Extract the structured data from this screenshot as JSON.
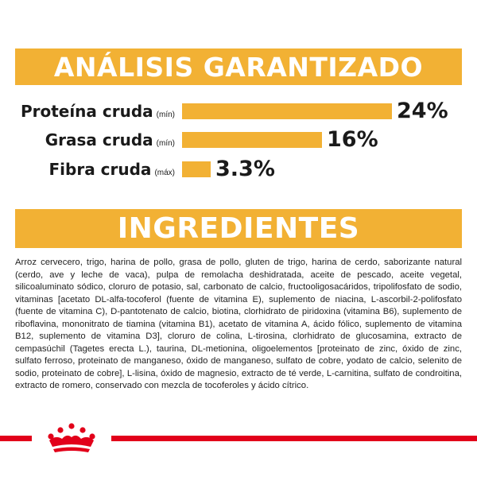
{
  "analysis": {
    "title": "ANÁLISIS GARANTIZADO",
    "rows": [
      {
        "name": "Proteína cruda",
        "qualifier": "(mín)",
        "value": "24%",
        "percent": 24
      },
      {
        "name": "Grasa cruda",
        "qualifier": "(mín)",
        "value": "16%",
        "percent": 16
      },
      {
        "name": "Fibra cruda",
        "qualifier": "(máx)",
        "value": "3.3%",
        "percent": 3.3
      }
    ]
  },
  "ingredients": {
    "title": "INGREDIENTES",
    "text": "Arroz cervecero, trigo, harina de pollo, grasa de pollo, gluten de trigo, harina de cerdo, saborizante natural (cerdo, ave y leche de vaca), pulpa de remolacha deshidratada, aceite de pescado, aceite vegetal, silicoaluminato sódico, cloruro de potasio, sal, carbonato de calcio, fructooligosacáridos, tripolifosfato de sodio, vitaminas [acetato DL-alfa-tocoferol (fuente de vitamina E), suplemento de niacina, L-ascorbil-2-polifosfato (fuente de vitamina C), D-pantotenato de calcio, biotina, clorhidrato de piridoxina (vitamina B6), suplemento de riboflavina, mononitrato de tiamina (vitamina B1), acetato de vitamina A, ácido fólico, suplemento de vitamina B12, suplemento de vitamina D3], cloruro de colina, L-tirosina, clorhidrato de glucosamina, extracto de cempasúchil (Tagetes erecta L.), taurina, DL-metionina, oligoelementos [proteinato de zinc, óxido de zinc, sulfato ferroso, proteinato de manganeso, óxido de manganeso, sulfato de cobre, yodato de calcio, selenito de sodio, proteinato de cobre], L-lisina, óxido de magnesio, extracto de té verde, L-carnitina, sulfato de condroitina, extracto de romero, conservado con mezcla de tocoferoles y ácido cítrico."
  },
  "colors": {
    "accent": "#f2b134",
    "brand_red": "#e2001a"
  },
  "icons": {
    "logo": "royal-crown-logo-icon"
  }
}
